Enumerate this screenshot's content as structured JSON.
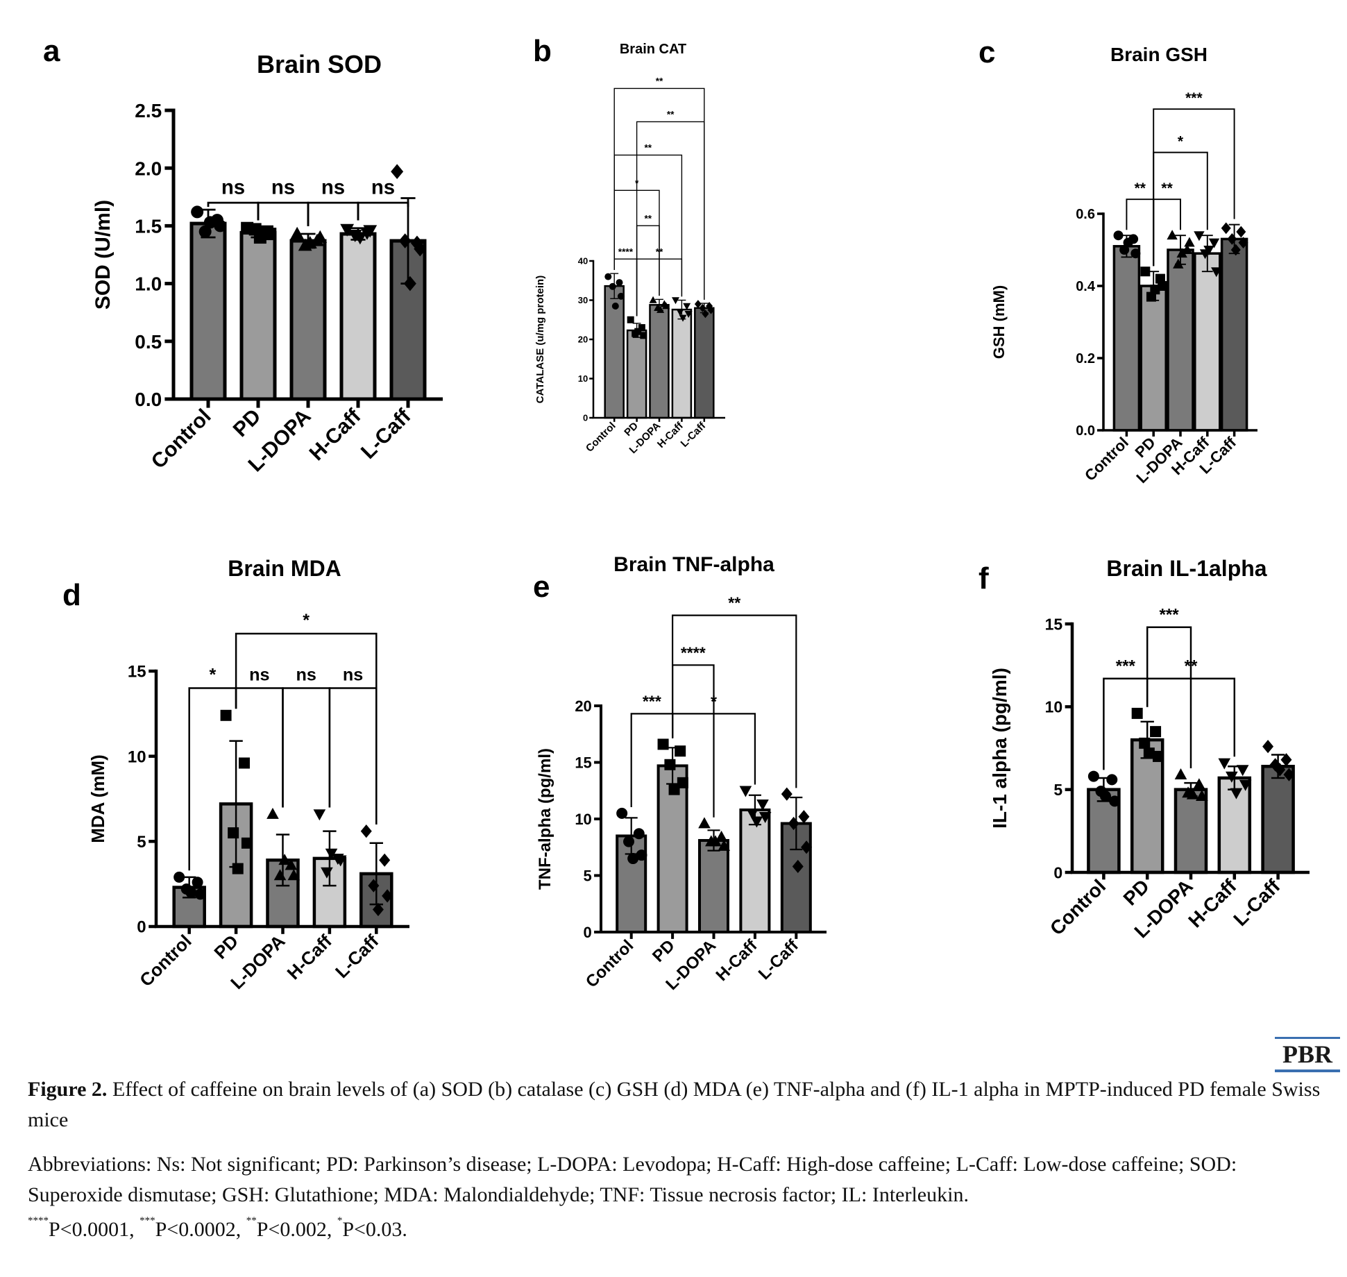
{
  "chart_data": [
    {
      "type": "bar",
      "panel": "a",
      "title": "Brain SOD",
      "ylabel": "SOD (U/ml)",
      "categories": [
        "Control",
        "PD",
        "L-DOPA",
        "H-Caff",
        "L-Caff"
      ],
      "values": [
        1.52,
        1.44,
        1.37,
        1.43,
        1.37
      ],
      "errors": [
        0.12,
        0.04,
        0.06,
        0.05,
        0.37
      ],
      "points": [
        [
          1.62,
          1.55,
          1.45,
          1.5,
          1.53
        ],
        [
          1.48,
          1.45,
          1.47,
          1.43,
          1.4
        ],
        [
          1.43,
          1.37,
          1.33,
          1.4,
          1.35
        ],
        [
          1.47,
          1.44,
          1.42,
          1.46,
          1.4
        ],
        [
          1.97,
          1.35,
          1.37,
          1.3,
          1.0
        ]
      ],
      "markers": [
        "circle",
        "square",
        "triangle",
        "down",
        "diamond"
      ],
      "colors": [
        "#7a7a7a",
        "#9b9b9b",
        "#7a7a7a",
        "#cdcdcd",
        "#5a5a5a"
      ],
      "ylim": [
        0,
        2.5
      ],
      "yticks": [
        0.0,
        0.5,
        1.0,
        1.5,
        2.0,
        2.5
      ],
      "ytick_labels": [
        "0.0",
        "0.5",
        "1.0",
        "1.5",
        "2.0",
        "2.5"
      ],
      "comparisons": [
        {
          "from": 0,
          "to": 1,
          "level": 1.7,
          "label": "ns"
        },
        {
          "from": 1,
          "to": 2,
          "level": 1.7,
          "label": "ns"
        },
        {
          "from": 2,
          "to": 3,
          "level": 1.7,
          "label": "ns"
        },
        {
          "from": 3,
          "to": 4,
          "level": 1.7,
          "label": "ns"
        }
      ]
    },
    {
      "type": "bar",
      "panel": "b",
      "title": "Brain CAT",
      "ylabel": "CATALASE (u/mg protein)",
      "categories": [
        "Control",
        "PD",
        "L-DOPA",
        "H-Caff",
        "L-Caff"
      ],
      "values": [
        33.6,
        22.3,
        28.8,
        27.6,
        28.0
      ],
      "errors": [
        3.2,
        1.8,
        1.4,
        2.4,
        1.2
      ],
      "points": [
        [
          36,
          34.5,
          33.5,
          31,
          28.5
        ],
        [
          25,
          23,
          21.5,
          21,
          22
        ],
        [
          30,
          29,
          28,
          28.5,
          27.5
        ],
        [
          30,
          28.5,
          27,
          26.5,
          25.5
        ],
        [
          29,
          28.5,
          28,
          27.5,
          26.5
        ]
      ],
      "markers": [
        "circle",
        "square",
        "triangle",
        "down",
        "diamond"
      ],
      "colors": [
        "#7a7a7a",
        "#9b9b9b",
        "#7a7a7a",
        "#cdcdcd",
        "#5a5a5a"
      ],
      "ylim": [
        0,
        40
      ],
      "yticks": [
        0,
        10,
        20,
        30,
        40
      ],
      "ytick_labels": [
        "0",
        "10",
        "20",
        "30",
        "40"
      ],
      "comparisons": [
        {
          "from": 0,
          "to": 1,
          "level": 40.5,
          "label": "****"
        },
        {
          "from": 1,
          "to": 3,
          "level": 40.5,
          "label": "**"
        },
        {
          "from": 1,
          "to": 2,
          "level": 49,
          "label": "**"
        },
        {
          "from": 0,
          "to": 2,
          "level": 58,
          "label": "*"
        },
        {
          "from": 0,
          "to": 3,
          "level": 67,
          "label": "**"
        },
        {
          "from": 1,
          "to": 4,
          "level": 75.5,
          "label": "**"
        },
        {
          "from": 0,
          "to": 4,
          "level": 84,
          "label": "**"
        }
      ]
    },
    {
      "type": "bar",
      "panel": "c",
      "title": "Brain GSH",
      "ylabel": "GSH (mM)",
      "categories": [
        "Control",
        "PD",
        "L-DOPA",
        "H-Caff",
        "L-Caff"
      ],
      "values": [
        0.51,
        0.4,
        0.5,
        0.49,
        0.53
      ],
      "errors": [
        0.03,
        0.04,
        0.04,
        0.05,
        0.04
      ],
      "points": [
        [
          0.54,
          0.53,
          0.5,
          0.49,
          0.52
        ],
        [
          0.44,
          0.42,
          0.37,
          0.4,
          0.39
        ],
        [
          0.54,
          0.5,
          0.46,
          0.52,
          0.49
        ],
        [
          0.54,
          0.52,
          0.49,
          0.44,
          0.5
        ],
        [
          0.56,
          0.55,
          0.53,
          0.52,
          0.5
        ]
      ],
      "markers": [
        "circle",
        "square",
        "triangle",
        "down",
        "diamond"
      ],
      "colors": [
        "#7a7a7a",
        "#9b9b9b",
        "#7a7a7a",
        "#cdcdcd",
        "#5a5a5a"
      ],
      "ylim": [
        0,
        0.6
      ],
      "yticks": [
        0.0,
        0.2,
        0.4,
        0.6
      ],
      "ytick_labels": [
        "0.0",
        "0.2",
        "0.4",
        "0.6"
      ],
      "comparisons": [
        {
          "from": 0,
          "to": 1,
          "level": 0.64,
          "label": "**"
        },
        {
          "from": 1,
          "to": 2,
          "level": 0.64,
          "label": "**"
        },
        {
          "from": 1,
          "to": 3,
          "level": 0.77,
          "label": "*"
        },
        {
          "from": 1,
          "to": 4,
          "level": 0.89,
          "label": "***"
        }
      ]
    },
    {
      "type": "bar",
      "panel": "d",
      "title": "Brain MDA",
      "ylabel": "MDA (mM)",
      "categories": [
        "Control",
        "PD",
        "L-DOPA",
        "H-Caff",
        "L-Caff"
      ],
      "values": [
        2.3,
        7.2,
        3.9,
        4.0,
        3.1
      ],
      "errors": [
        0.6,
        3.7,
        1.5,
        1.6,
        1.8
      ],
      "points": [
        [
          2.9,
          2.6,
          2.2,
          1.9,
          2.0
        ],
        [
          12.4,
          9.6,
          5.5,
          4.9,
          3.4
        ],
        [
          6.6,
          3.6,
          3.0,
          3.0,
          3.9
        ],
        [
          6.6,
          4.0,
          3.2,
          3.9,
          4.3
        ],
        [
          5.6,
          3.9,
          2.4,
          1.8,
          1.0
        ]
      ],
      "markers": [
        "circle",
        "square",
        "triangle",
        "down",
        "diamond"
      ],
      "colors": [
        "#7a7a7a",
        "#9b9b9b",
        "#7a7a7a",
        "#cdcdcd",
        "#5a5a5a"
      ],
      "ylim": [
        0,
        15
      ],
      "yticks": [
        0,
        5,
        10,
        15
      ],
      "ytick_labels": [
        "0",
        "5",
        "10",
        "15"
      ],
      "comparisons": [
        {
          "from": 0,
          "to": 1,
          "level": 14.0,
          "label": "*"
        },
        {
          "from": 1,
          "to": 2,
          "level": 14.0,
          "label": "ns"
        },
        {
          "from": 2,
          "to": 3,
          "level": 14.0,
          "label": "ns"
        },
        {
          "from": 3,
          "to": 4,
          "level": 14.0,
          "label": "ns"
        },
        {
          "from": 1,
          "to": 4,
          "level": 17.2,
          "label": "*"
        }
      ]
    },
    {
      "type": "bar",
      "panel": "e",
      "title": "Brain TNF-alpha",
      "ylabel": "TNF-alpha (pg/ml)",
      "categories": [
        "Control",
        "PD",
        "L-DOPA",
        "H-Caff",
        "L-Caff"
      ],
      "values": [
        8.5,
        14.7,
        8.1,
        10.8,
        9.6
      ],
      "errors": [
        1.6,
        1.6,
        0.9,
        1.3,
        2.3
      ],
      "points": [
        [
          10.5,
          8.7,
          8.0,
          6.8,
          6.5
        ],
        [
          16.6,
          16.0,
          14.8,
          13.2,
          12.6
        ],
        [
          9.6,
          8.4,
          8.0,
          7.6,
          8.0
        ],
        [
          12.5,
          11.3,
          10.5,
          10.2,
          9.8
        ],
        [
          12.2,
          10.2,
          9.6,
          7.5,
          5.8
        ]
      ],
      "markers": [
        "circle",
        "square",
        "triangle",
        "down",
        "diamond"
      ],
      "colors": [
        "#7a7a7a",
        "#9b9b9b",
        "#7a7a7a",
        "#cdcdcd",
        "#5a5a5a"
      ],
      "ylim": [
        0,
        20
      ],
      "yticks": [
        0,
        5,
        10,
        15,
        20
      ],
      "ytick_labels": [
        "0",
        "5",
        "10",
        "15",
        "20"
      ],
      "comparisons": [
        {
          "from": 0,
          "to": 1,
          "level": 19.3,
          "label": "***"
        },
        {
          "from": 1,
          "to": 3,
          "level": 19.3,
          "label": "*"
        },
        {
          "from": 1,
          "to": 2,
          "level": 23.6,
          "label": "****"
        },
        {
          "from": 1,
          "to": 4,
          "level": 28.0,
          "label": "**"
        }
      ]
    },
    {
      "type": "bar",
      "panel": "f",
      "title": "Brain IL-1alpha",
      "ylabel": "IL-1 alpha (pg/ml)",
      "categories": [
        "Control",
        "PD",
        "L-DOPA",
        "H-Caff",
        "L-Caff"
      ],
      "values": [
        5.0,
        8.0,
        5.0,
        5.7,
        6.4
      ],
      "errors": [
        0.7,
        1.1,
        0.4,
        0.7,
        0.7
      ],
      "points": [
        [
          5.8,
          5.6,
          4.9,
          4.3,
          4.6
        ],
        [
          9.6,
          8.5,
          7.8,
          7.0,
          7.2
        ],
        [
          5.9,
          5.3,
          4.8,
          4.6,
          4.7
        ],
        [
          6.6,
          6.2,
          5.8,
          5.3,
          4.8
        ],
        [
          7.6,
          6.8,
          6.5,
          5.9,
          6.2
        ]
      ],
      "markers": [
        "circle",
        "square",
        "triangle",
        "down",
        "diamond"
      ],
      "colors": [
        "#7a7a7a",
        "#9b9b9b",
        "#7a7a7a",
        "#cdcdcd",
        "#5a5a5a"
      ],
      "ylim": [
        0,
        15
      ],
      "yticks": [
        0,
        5,
        10,
        15
      ],
      "ytick_labels": [
        "0",
        "5",
        "10",
        "15"
      ],
      "comparisons": [
        {
          "from": 0,
          "to": 1,
          "level": 11.7,
          "label": "***"
        },
        {
          "from": 1,
          "to": 3,
          "level": 11.7,
          "label": "**"
        },
        {
          "from": 1,
          "to": 2,
          "level": 14.8,
          "label": "***"
        }
      ]
    }
  ],
  "caption": {
    "figure_label": "Figure 2.",
    "figure_text": "Effect of caffeine on brain levels of (a) SOD (b) catalase (c) GSH (d) MDA (e) TNF-alpha and (f) IL-1 alpha in MPTP-induced PD female Swiss mice",
    "abbreviations": "Abbreviations: Ns: Not significant; PD: Parkinson’s disease; L-DOPA: Levodopa; H-Caff: High-dose caffeine; L-Caff: Low-dose caffeine; SOD: Superoxide dismutase; GSH: Glutathione; MDA: Malondialdehyde; TNF: Tissue necrosis factor; IL: Interleukin.",
    "p_values": [
      {
        "stars": "****",
        "text": "P<0.0001,"
      },
      {
        "stars": "***",
        "text": "P<0.0002,"
      },
      {
        "stars": "**",
        "text": "P<0.002,"
      },
      {
        "stars": "*",
        "text": "P<0.03."
      }
    ]
  },
  "logo": {
    "text": "PBR",
    "color": "#3a6fb0"
  }
}
